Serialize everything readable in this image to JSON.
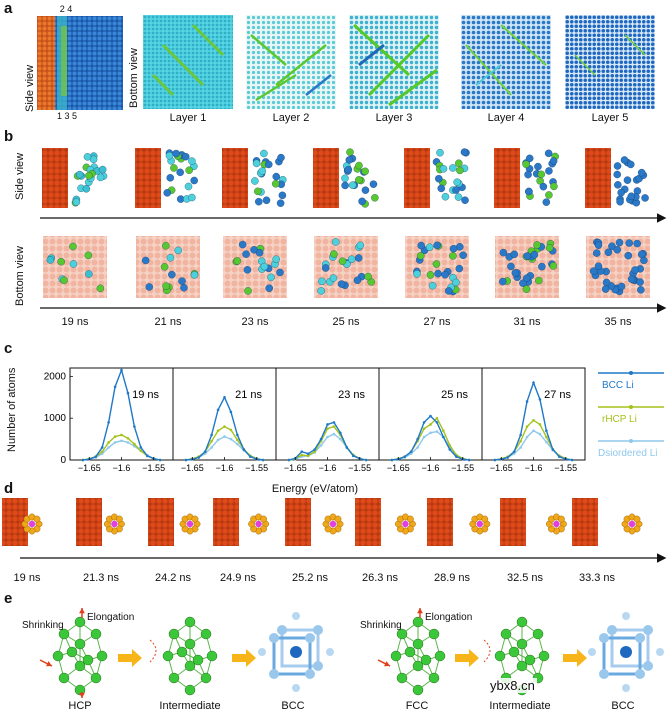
{
  "panel_a": {
    "label": "a",
    "side_view_label": "Side view",
    "bottom_view_label": "Bottom view",
    "layer_ticks_top": "2 4",
    "layer_ticks_bottom": "1 3 5",
    "layers": [
      "Layer 1",
      "Layer 2",
      "Layer 3",
      "Layer 4",
      "Layer 5"
    ]
  },
  "panel_b": {
    "label": "b",
    "side_view_label": "Side view",
    "bottom_view_label": "Bottom view",
    "times": [
      "19 ns",
      "21 ns",
      "23 ns",
      "25 ns",
      "27 ns",
      "31 ns",
      "35 ns"
    ]
  },
  "panel_c": {
    "label": "c",
    "ylabel": "Number of atoms",
    "xlabel": "Energy (eV/atom)",
    "legend": [
      "BCC Li",
      "rHCP Li",
      "Dsiordered Li"
    ],
    "colors": {
      "bcc": "#1f78c8",
      "rhcp": "#a4c21a",
      "dis": "#8fc8ec"
    }
  },
  "chart_data": {
    "type": "line",
    "xlabel": "Energy (eV/atom)",
    "ylabel": "Number of atoms",
    "xticks": [
      "−1.65",
      "−1.6",
      "−1.55"
    ],
    "yticks": [
      "0",
      "1000",
      "2000"
    ],
    "xlim": [
      -1.68,
      -1.52
    ],
    "ylim": [
      0,
      2200
    ],
    "legend_position": "right",
    "x": [
      -1.66,
      -1.65,
      -1.64,
      -1.63,
      -1.62,
      -1.61,
      -1.6,
      -1.59,
      -1.58,
      -1.57,
      -1.56,
      -1.55,
      -1.54
    ],
    "panels": [
      {
        "label": "19 ns",
        "series": [
          {
            "name": "BCC Li",
            "values": [
              0,
              20,
              80,
              300,
              900,
              1750,
              2150,
              1600,
              800,
              300,
              100,
              30,
              0
            ]
          },
          {
            "name": "rHCP Li",
            "values": [
              0,
              30,
              80,
              200,
              420,
              560,
              600,
              520,
              380,
              220,
              100,
              30,
              0
            ]
          },
          {
            "name": "Dsiordered Li",
            "values": [
              0,
              20,
              60,
              150,
              300,
              420,
              460,
              420,
              330,
              220,
              110,
              40,
              0
            ]
          }
        ]
      },
      {
        "label": "21 ns",
        "series": [
          {
            "name": "BCC Li",
            "values": [
              0,
              20,
              60,
              200,
              600,
              1200,
              1500,
              1150,
              600,
              250,
              80,
              20,
              0
            ]
          },
          {
            "name": "rHCP Li",
            "values": [
              0,
              30,
              80,
              200,
              450,
              700,
              800,
              720,
              480,
              260,
              100,
              30,
              0
            ]
          },
          {
            "name": "Dsiordered Li",
            "values": [
              0,
              20,
              60,
              150,
              300,
              480,
              560,
              500,
              380,
              230,
              100,
              40,
              0
            ]
          }
        ]
      },
      {
        "label": "23 ns",
        "series": [
          {
            "name": "BCC Li",
            "values": [
              0,
              40,
              200,
              150,
              250,
              500,
              850,
              900,
              650,
              300,
              100,
              30,
              0
            ]
          },
          {
            "name": "rHCP Li",
            "values": [
              0,
              30,
              120,
              100,
              200,
              450,
              750,
              800,
              600,
              300,
              120,
              30,
              0
            ]
          },
          {
            "name": "Dsiordered Li",
            "values": [
              0,
              20,
              80,
              100,
              180,
              350,
              550,
              620,
              500,
              300,
              120,
              40,
              0
            ]
          }
        ]
      },
      {
        "label": "25 ns",
        "series": [
          {
            "name": "BCC Li",
            "values": [
              0,
              20,
              80,
              200,
              500,
              900,
              1050,
              900,
              550,
              250,
              80,
              20,
              0
            ]
          },
          {
            "name": "rHCP Li",
            "values": [
              0,
              30,
              80,
              200,
              450,
              750,
              850,
              1000,
              700,
              350,
              120,
              30,
              0
            ]
          },
          {
            "name": "Dsiordered Li",
            "values": [
              0,
              20,
              60,
              150,
              300,
              550,
              650,
              680,
              550,
              300,
              120,
              40,
              0
            ]
          }
        ]
      },
      {
        "label": "27 ns",
        "series": [
          {
            "name": "BCC Li",
            "values": [
              0,
              20,
              60,
              200,
              600,
              1400,
              1850,
              1450,
              700,
              250,
              80,
              20,
              0
            ]
          },
          {
            "name": "rHCP Li",
            "values": [
              0,
              30,
              80,
              200,
              450,
              800,
              950,
              850,
              550,
              260,
              100,
              30,
              0
            ]
          },
          {
            "name": "Dsiordered Li",
            "values": [
              0,
              20,
              60,
              150,
              300,
              550,
              700,
              620,
              430,
              240,
              100,
              40,
              0
            ]
          }
        ]
      }
    ]
  },
  "panel_d": {
    "label": "d",
    "times": [
      "19 ns",
      "21.3 ns",
      "24.2 ns",
      "24.9 ns",
      "25.2 ns",
      "26.3 ns",
      "28.9 ns",
      "32.5 ns",
      "33.3 ns"
    ]
  },
  "panel_e": {
    "label": "e",
    "shrinking": "Shrinking",
    "elongation": "Elongation",
    "labels": [
      "HCP",
      "Intermediate",
      "BCC",
      "FCC",
      "Intermediate",
      "BCC"
    ],
    "watermark": "ybx8.cn"
  }
}
